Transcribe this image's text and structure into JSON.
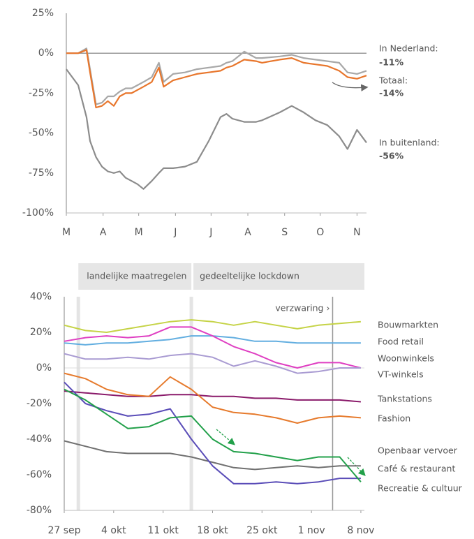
{
  "chart_data": [
    {
      "type": "line",
      "x": [
        0,
        10,
        17,
        20,
        25,
        30,
        35,
        40,
        45,
        50,
        55,
        60,
        65,
        72,
        78,
        82,
        90,
        100,
        110,
        120,
        130,
        135,
        140,
        150,
        160,
        165,
        180,
        190,
        200,
        210,
        220,
        230,
        237,
        245,
        253
      ],
      "xlim": [
        0,
        253
      ],
      "xticks": [
        {
          "value": 0,
          "label": "M"
        },
        {
          "value": 31,
          "label": "A"
        },
        {
          "value": 61,
          "label": "M"
        },
        {
          "value": 92,
          "label": "J"
        },
        {
          "value": 122,
          "label": "J"
        },
        {
          "value": 153,
          "label": "A"
        },
        {
          "value": 184,
          "label": "S"
        },
        {
          "value": 214,
          "label": "O"
        },
        {
          "value": 245,
          "label": "N"
        }
      ],
      "ylim": [
        -100,
        25
      ],
      "yticks": [
        {
          "value": 25,
          "label": "25%"
        },
        {
          "value": 0,
          "label": "0%"
        },
        {
          "value": -25,
          "label": "-25%"
        },
        {
          "value": -50,
          "label": "-50%"
        },
        {
          "value": -75,
          "label": "-75%"
        },
        {
          "value": -100,
          "label": "-100%"
        }
      ],
      "series": [
        {
          "name": "In Nederland:",
          "end_label": "-11%",
          "color": "#a8a8a8",
          "values": [
            0,
            0,
            3,
            -10,
            -32,
            -31,
            -27,
            -27,
            -24,
            -22,
            -22,
            -20,
            -18,
            -15,
            -6,
            -18,
            -13,
            -12,
            -10,
            -9,
            -8,
            -6,
            -5,
            1,
            -3,
            -3,
            -2,
            -1,
            -3,
            -4,
            -5,
            -6,
            -12,
            -13,
            -11
          ]
        },
        {
          "name": "Totaal:",
          "end_label": "-14%",
          "color": "#e8762c",
          "values": [
            0,
            0,
            2,
            -12,
            -34,
            -33,
            -30,
            -33,
            -27,
            -25,
            -25,
            -23,
            -21,
            -18,
            -9,
            -21,
            -17,
            -15,
            -13,
            -12,
            -11,
            -9,
            -8,
            -4,
            -5,
            -6,
            -4,
            -3,
            -6,
            -7,
            -8,
            -11,
            -15,
            -16,
            -14
          ]
        },
        {
          "name": "In buitenland:",
          "end_label": "-56%",
          "color": "#8c8c8c",
          "values": [
            -10,
            -20,
            -40,
            -55,
            -65,
            -71,
            -74,
            -75,
            -74,
            -78,
            -80,
            -82,
            -85,
            -80,
            -75,
            -72,
            -72,
            -71,
            -68,
            -55,
            -40,
            -38,
            -41,
            -43,
            -43,
            -42,
            -37,
            -33,
            -37,
            -42,
            -45,
            -52,
            -60,
            -48,
            -56
          ]
        }
      ]
    },
    {
      "type": "line",
      "x": [
        0,
        3,
        6,
        9,
        12,
        15,
        18,
        21,
        24,
        27,
        30,
        33,
        36,
        39,
        42
      ],
      "xlim": [
        0,
        42.5
      ],
      "xticks": [
        {
          "value": 0,
          "label": "27 sep"
        },
        {
          "value": 7,
          "label": "4 okt"
        },
        {
          "value": 14,
          "label": "11 okt"
        },
        {
          "value": 21,
          "label": "18 okt"
        },
        {
          "value": 28,
          "label": "25 okt"
        },
        {
          "value": 35,
          "label": "1 nov"
        },
        {
          "value": 42,
          "label": "8 nov"
        }
      ],
      "ylim": [
        -80,
        40
      ],
      "yticks": [
        {
          "value": 40,
          "label": "40%"
        },
        {
          "value": 20,
          "label": "20%"
        },
        {
          "value": 0,
          "label": "0%"
        },
        {
          "value": -20,
          "label": "-20%"
        },
        {
          "value": -40,
          "label": "-40%"
        },
        {
          "value": -60,
          "label": "-60%"
        },
        {
          "value": -80,
          "label": "-80%"
        }
      ],
      "periods": [
        {
          "label": "landelijke maatregelen",
          "start": 2,
          "end": 18
        },
        {
          "label": "gedeeltelijke lockdown",
          "start": 18,
          "end": 42.5
        }
      ],
      "markers": [
        {
          "x": 38,
          "label": "verzwaring ›"
        }
      ],
      "series": [
        {
          "name": "Bouwmarkten",
          "color": "#c5d346",
          "values": [
            24,
            21,
            20,
            22,
            24,
            26,
            27,
            26,
            24,
            26,
            24,
            22,
            24,
            25,
            26
          ]
        },
        {
          "name": "Food retail",
          "color": "#62aee0",
          "values": [
            14,
            13,
            14,
            14,
            15,
            16,
            18,
            18,
            17,
            15,
            15,
            14,
            14,
            14,
            14
          ]
        },
        {
          "name": "Woonwinkels",
          "color": "#df3fc2",
          "values": [
            15,
            17,
            18,
            17,
            18,
            23,
            23,
            18,
            12,
            8,
            3,
            0,
            3,
            3,
            0
          ]
        },
        {
          "name": "VT-winkels",
          "color": "#a99bd2",
          "values": [
            8,
            5,
            5,
            6,
            5,
            7,
            8,
            6,
            1,
            4,
            1,
            -3,
            -2,
            0,
            0
          ]
        },
        {
          "name": "Tankstations",
          "color": "#8a1a6a",
          "values": [
            -13,
            -14,
            -15,
            -16,
            -16,
            -15,
            -15,
            -16,
            -16,
            -17,
            -17,
            -18,
            -18,
            -18,
            -19
          ]
        },
        {
          "name": "Fashion",
          "color": "#e67a2c",
          "values": [
            -3,
            -6,
            -12,
            -15,
            -16,
            -5,
            -12,
            -22,
            -25,
            -26,
            -28,
            -31,
            -28,
            -27,
            -28
          ]
        },
        {
          "name": "Openbaar vervoer",
          "color": "#707070",
          "values": [
            -41,
            -44,
            -47,
            -48,
            -48,
            -48,
            -50,
            -53,
            -56,
            -57,
            -56,
            -55,
            -56,
            -55,
            -55
          ]
        },
        {
          "name": "Café & restaurant",
          "color": "#5a4db8",
          "values": [
            -8,
            -20,
            -24,
            -27,
            -26,
            -23,
            -40,
            -55,
            -65,
            -65,
            -64,
            -65,
            -64,
            -62,
            -62
          ]
        },
        {
          "name": "Recreatie & cultuur",
          "color": "#22a04a",
          "values": [
            -12,
            -18,
            -26,
            -34,
            -33,
            -28,
            -27,
            -40,
            -47,
            -48,
            -50,
            -52,
            -50,
            -50,
            -64
          ]
        }
      ]
    }
  ]
}
